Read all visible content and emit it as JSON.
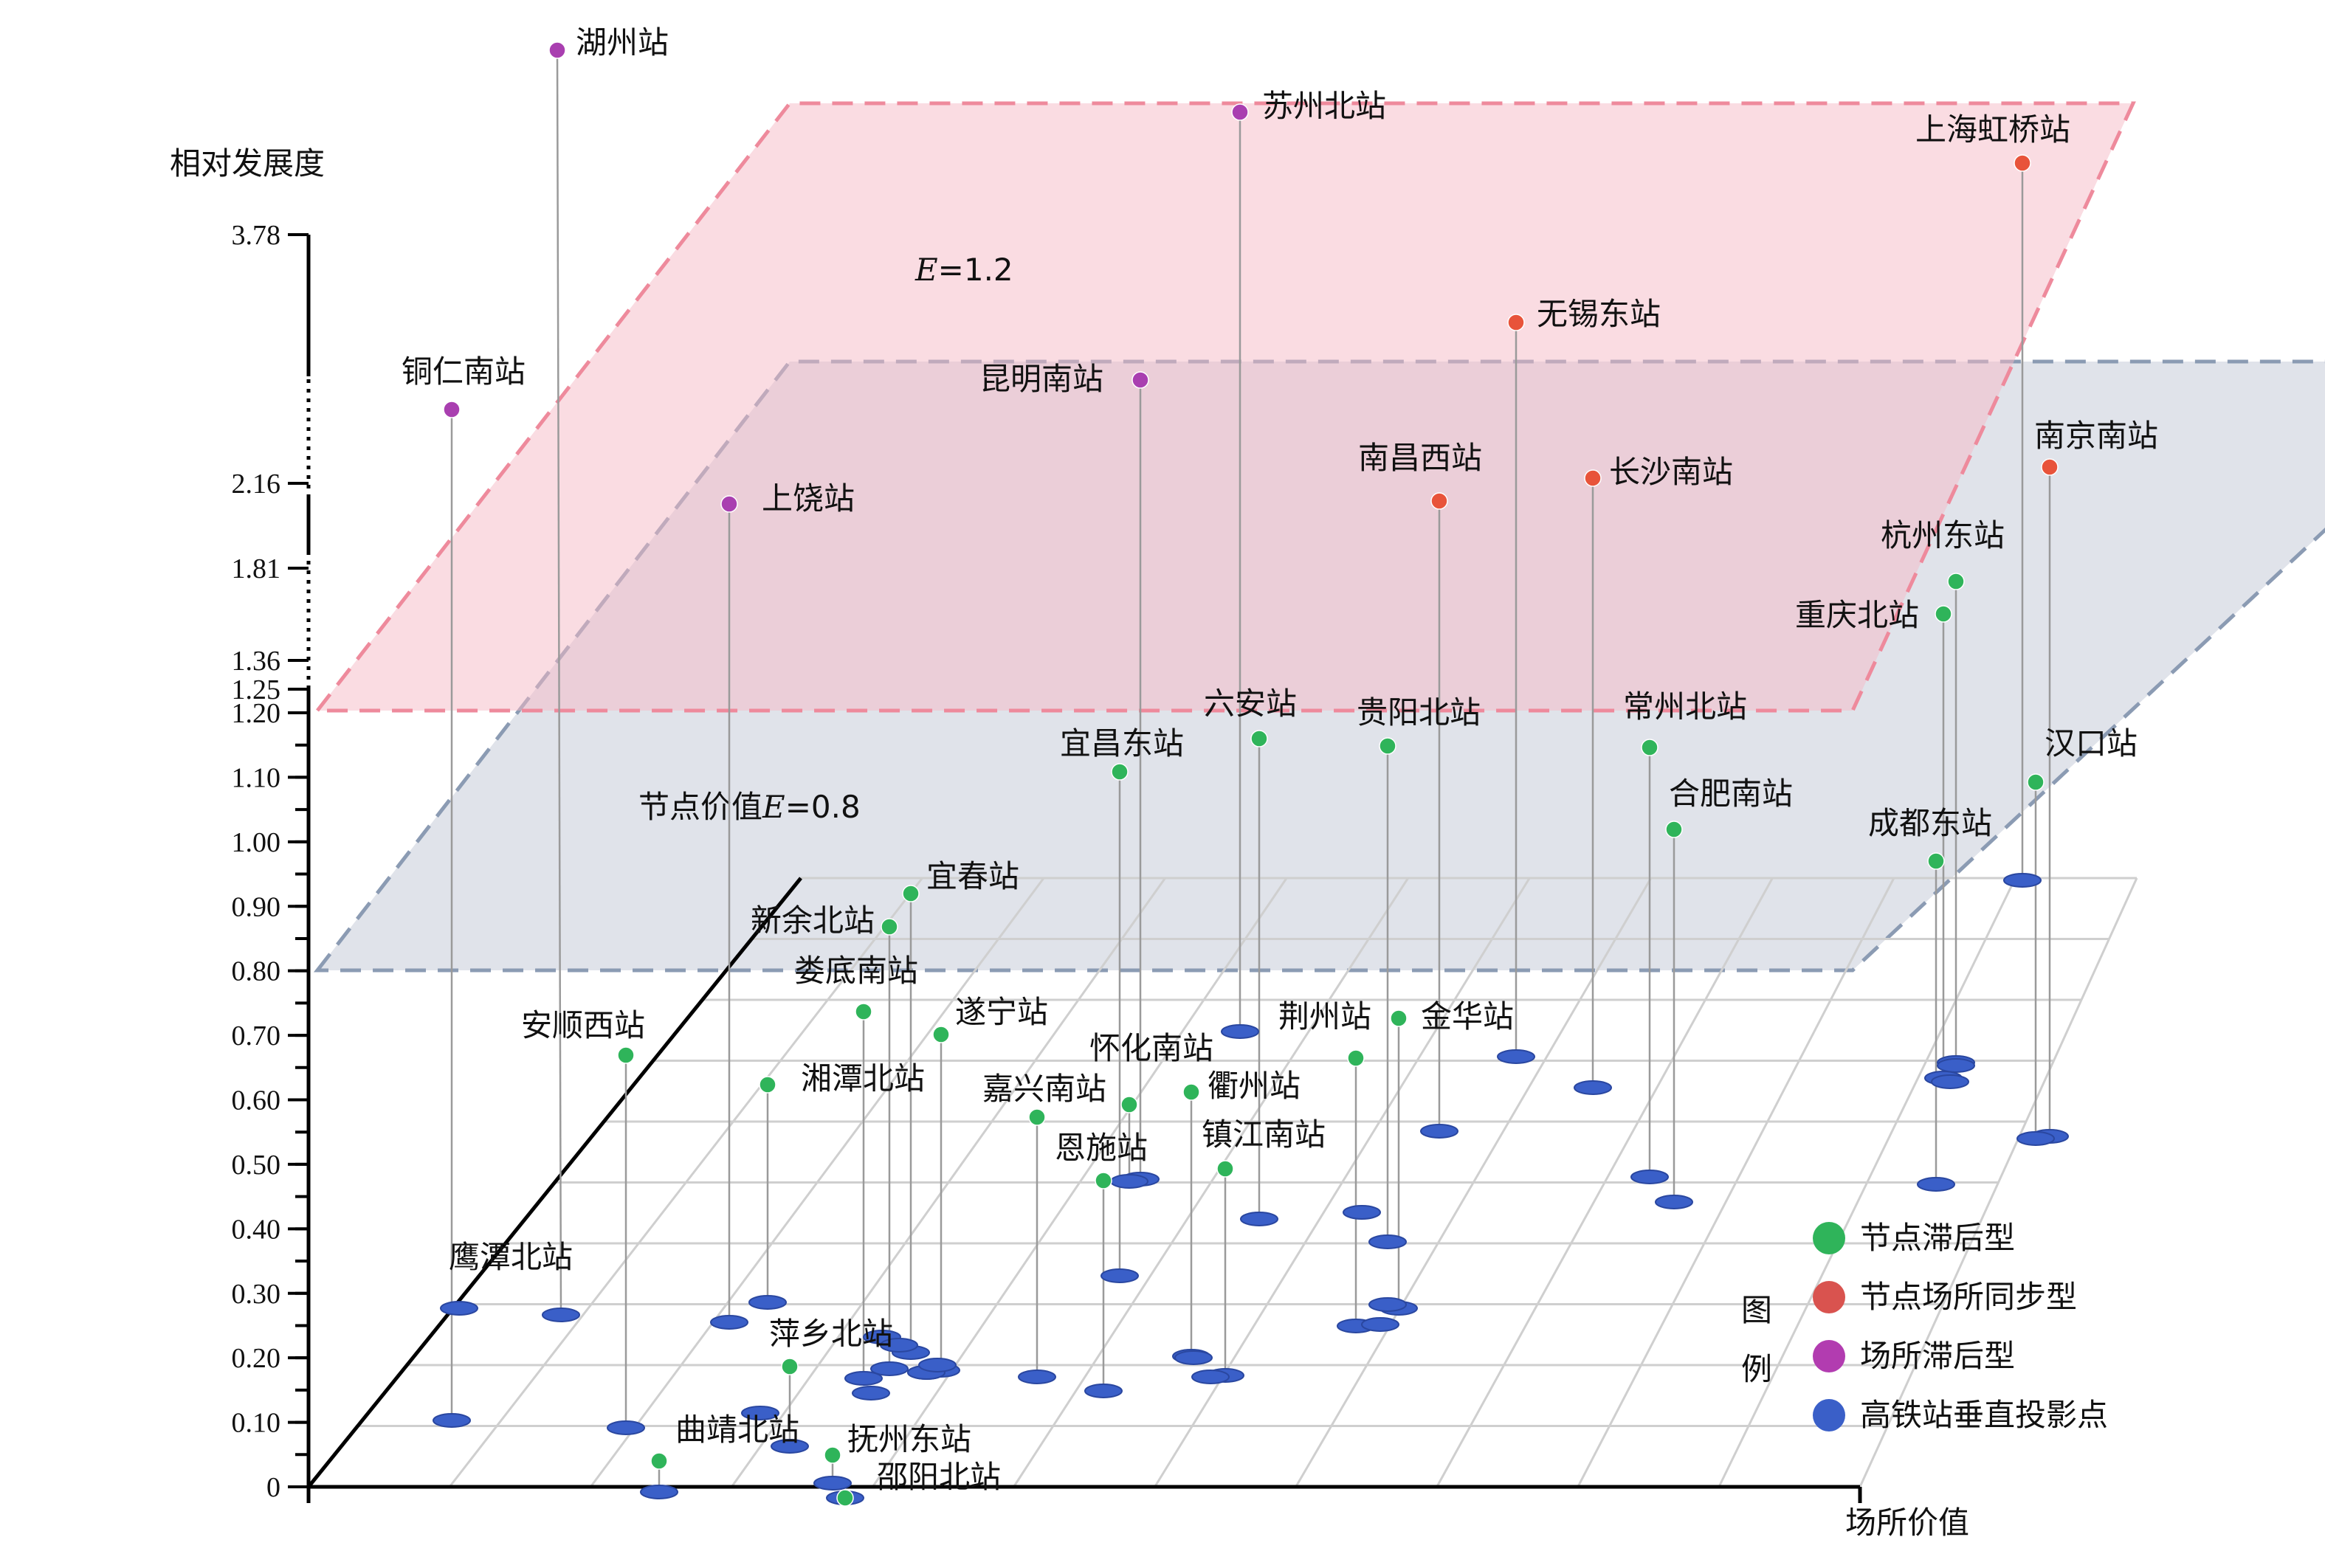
{
  "chart_data": {
    "type": "scatter",
    "ylabel": "相对发展度",
    "xlabel": "场所价值",
    "y_ticks": [
      {
        "value": 0,
        "label": "0"
      },
      {
        "value": 0.1,
        "label": "0.10"
      },
      {
        "value": 0.2,
        "label": "0.20"
      },
      {
        "value": 0.3,
        "label": "0.30"
      },
      {
        "value": 0.4,
        "label": "0.40"
      },
      {
        "value": 0.5,
        "label": "0.50"
      },
      {
        "value": 0.6,
        "label": "0.60"
      },
      {
        "value": 0.7,
        "label": "0.70"
      },
      {
        "value": 0.8,
        "label": "0.80"
      },
      {
        "value": 0.9,
        "label": "0.90"
      },
      {
        "value": 1.0,
        "label": "1.00"
      },
      {
        "value": 1.1,
        "label": "1.10"
      },
      {
        "value": 1.2,
        "label": "1.20"
      },
      {
        "value": 1.25,
        "label": "1.25"
      },
      {
        "value": 1.36,
        "label": "1.36"
      },
      {
        "value": 1.81,
        "label": "1.81"
      },
      {
        "value": 2.16,
        "label": "2.16"
      },
      {
        "value": 3.78,
        "label": "3.78"
      }
    ],
    "planes": [
      {
        "label_prefix": "节点价值",
        "label_italic": "E",
        "label_suffix": "=0.8",
        "value": 0.8,
        "color": "#c7ccd9"
      },
      {
        "label_prefix": "",
        "label_italic": "E",
        "label_suffix": "=1.2",
        "value": 1.2,
        "color": "#f6b9c6"
      }
    ],
    "legend_title": "图例",
    "legend": [
      {
        "label": "节点滞后型",
        "color": "#2fb45a"
      },
      {
        "label": "节点场所同步型",
        "color": "#d9534f"
      },
      {
        "label": "场所滞后型",
        "color": "#b23cb0"
      },
      {
        "label": "高铁站垂直投影点",
        "color": "#3a5fc8"
      }
    ],
    "series": [
      {
        "type": "场所滞后型",
        "color": "#a93fb0",
        "points": [
          {
            "name": "湖州站"
          },
          {
            "name": "苏州北站"
          },
          {
            "name": "铜仁南站"
          },
          {
            "name": "昆明南站"
          },
          {
            "name": "上饶站"
          }
        ]
      },
      {
        "type": "节点场所同步型",
        "color": "#e8533a",
        "points": [
          {
            "name": "上海虹桥站"
          },
          {
            "name": "无锡东站"
          },
          {
            "name": "南昌西站"
          },
          {
            "name": "长沙南站"
          },
          {
            "name": "南京南站"
          }
        ]
      },
      {
        "type": "节点滞后型",
        "color": "#2fb45a",
        "points": [
          {
            "name": "杭州东站"
          },
          {
            "name": "重庆北站"
          },
          {
            "name": "六安站"
          },
          {
            "name": "贵阳北站"
          },
          {
            "name": "常州北站"
          },
          {
            "name": "宜昌东站"
          },
          {
            "name": "汉口站"
          },
          {
            "name": "合肥南站"
          },
          {
            "name": "成都东站"
          },
          {
            "name": "宜春站"
          },
          {
            "name": "新余北站"
          },
          {
            "name": "娄底南站"
          },
          {
            "name": "遂宁站"
          },
          {
            "name": "安顺西站"
          },
          {
            "name": "荆州站"
          },
          {
            "name": "金华站"
          },
          {
            "name": "怀化南站"
          },
          {
            "name": "湘潭北站"
          },
          {
            "name": "嘉兴南站"
          },
          {
            "name": "衢州站"
          },
          {
            "name": "恩施站"
          },
          {
            "name": "镇江南站"
          },
          {
            "name": "萍乡北站"
          },
          {
            "name": "曲靖北站"
          },
          {
            "name": "抚州东站"
          },
          {
            "name": "邵阳北站"
          }
        ]
      }
    ],
    "extra_projections": [
      {
        "name": "鹰潭北站"
      }
    ]
  }
}
